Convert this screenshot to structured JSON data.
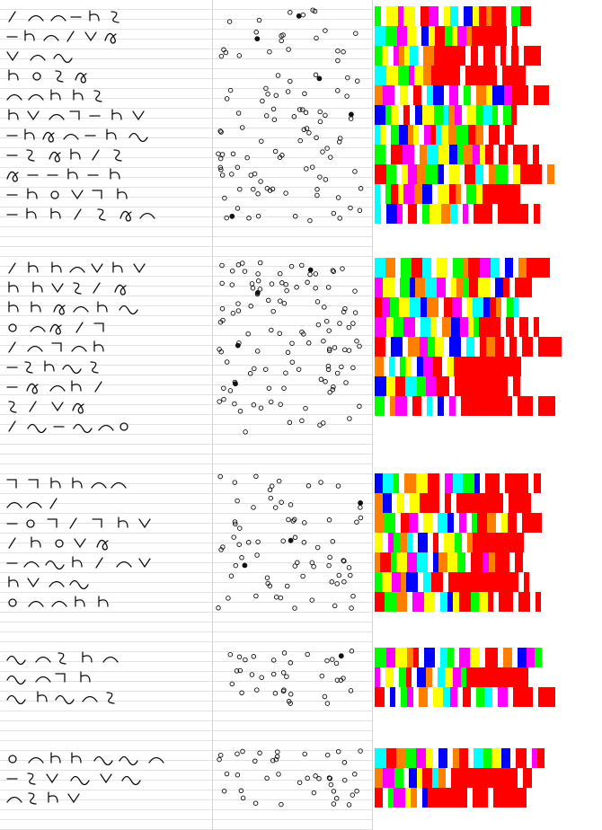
{
  "title": "",
  "colors": {
    "background": "#ffffff",
    "ruling": "#e3e3e3",
    "divider": "#d4d4d4",
    "ink": "#111111"
  },
  "palette": [
    "#ff0000",
    "#ff8000",
    "#ffff00",
    "#00ff00",
    "#00ffff",
    "#0000ff",
    "#ff00ff",
    "#ffffff"
  ],
  "glyph_shapes": [
    "arc",
    "loop",
    "hook",
    "tick",
    "dash",
    "vee",
    "circle",
    "wave",
    "step",
    "curl"
  ],
  "sections": [
    {
      "rows": [
        {
          "glyphs": [
            "tick",
            "arc",
            "arc",
            "dash",
            "hook",
            "curl"
          ],
          "dots": 6,
          "filled": 1,
          "colors": [
            3,
            2,
            6,
            2,
            0,
            6,
            2,
            4,
            5,
            2,
            0,
            1,
            0,
            0,
            3,
            0
          ]
        },
        {
          "glyphs": [
            "dash",
            "hook",
            "arc",
            "tick",
            "vee",
            "loop"
          ],
          "dots": 7,
          "filled": 1,
          "colors": [
            4,
            3,
            6,
            2,
            5,
            2,
            0,
            3,
            2,
            6,
            1,
            0,
            0,
            0,
            0,
            0
          ]
        },
        {
          "glyphs": [
            "vee",
            "arc",
            "wave"
          ],
          "dots": 9,
          "filled": 0,
          "colors": [
            3,
            2,
            6,
            1,
            2,
            4,
            1,
            0,
            0,
            0,
            0,
            0,
            0,
            0,
            0,
            0
          ]
        },
        {
          "glyphs": [
            "hook",
            "circle",
            "curl",
            "loop"
          ],
          "dots": 5,
          "filled": 1,
          "colors": [
            4,
            2,
            3,
            6,
            2,
            1,
            0,
            0,
            0,
            0,
            0,
            0,
            0,
            0,
            0,
            0
          ]
        },
        {
          "glyphs": [
            "arc",
            "arc",
            "hook",
            "hook",
            "curl"
          ],
          "dots": 10,
          "filled": 0,
          "colors": [
            1,
            6,
            2,
            0,
            4,
            5,
            6,
            3,
            1,
            2,
            5,
            6,
            0,
            0,
            0,
            0
          ]
        },
        {
          "glyphs": [
            "hook",
            "vee",
            "arc",
            "step",
            "dash",
            "hook",
            "vee"
          ],
          "dots": 12,
          "filled": 1,
          "colors": [
            5,
            3,
            2,
            0,
            5,
            2,
            3,
            4,
            1,
            6,
            2,
            3,
            4,
            3,
            3,
            0
          ]
        },
        {
          "glyphs": [
            "dash",
            "hook",
            "loop",
            "arc",
            "dash",
            "hook",
            "wave"
          ],
          "dots": 11,
          "filled": 0,
          "colors": [
            4,
            2,
            3,
            5,
            1,
            2,
            6,
            0,
            4,
            2,
            1,
            3,
            0,
            1,
            0,
            0
          ]
        },
        {
          "glyphs": [
            "dash",
            "curl",
            "loop",
            "hook",
            "tick",
            "curl"
          ],
          "dots": 11,
          "filled": 0,
          "colors": [
            3,
            0,
            6,
            1,
            4,
            2,
            5,
            3,
            1,
            6,
            2,
            0,
            0,
            0,
            0,
            0
          ]
        },
        {
          "glyphs": [
            "loop",
            "dash",
            "dash",
            "hook",
            "dash",
            "hook"
          ],
          "dots": 13,
          "filled": 0,
          "colors": [
            0,
            3,
            2,
            6,
            1,
            3,
            5,
            2,
            0,
            4,
            1,
            3,
            2,
            0,
            0,
            1
          ]
        },
        {
          "glyphs": [
            "dash",
            "hook",
            "circle",
            "vee",
            "step",
            "hook"
          ],
          "dots": 12,
          "filled": 0,
          "colors": [
            4,
            3,
            0,
            2,
            6,
            1,
            5,
            2,
            0,
            1,
            3,
            2,
            0,
            0,
            0,
            0
          ]
        },
        {
          "glyphs": [
            "dash",
            "hook",
            "hook",
            "tick",
            "curl",
            "loop",
            "arc"
          ],
          "dots": 10,
          "filled": 1,
          "colors": [
            4,
            5,
            6,
            0,
            3,
            2,
            1,
            4,
            6,
            0,
            0,
            0,
            0,
            0,
            0,
            0
          ]
        }
      ]
    },
    {
      "rows": [
        {
          "glyphs": [
            "tick",
            "hook",
            "hook",
            "arc",
            "vee",
            "hook",
            "vee"
          ],
          "dots": 15,
          "filled": 1,
          "colors": [
            4,
            1,
            3,
            0,
            4,
            2,
            3,
            1,
            0,
            6,
            4,
            5,
            1,
            0,
            0,
            0
          ]
        },
        {
          "glyphs": [
            "hook",
            "hook",
            "vee",
            "curl",
            "tick",
            "loop"
          ],
          "dots": 16,
          "filled": 1,
          "colors": [
            6,
            2,
            3,
            5,
            1,
            4,
            6,
            2,
            1,
            3,
            0,
            2,
            5,
            0,
            0,
            0
          ]
        },
        {
          "glyphs": [
            "hook",
            "hook",
            "loop",
            "arc",
            "hook",
            "wave"
          ],
          "dots": 14,
          "filled": 0,
          "colors": [
            0,
            6,
            3,
            2,
            4,
            5,
            1,
            0,
            6,
            2,
            4,
            5,
            0,
            1,
            3,
            4
          ]
        },
        {
          "glyphs": [
            "circle",
            "arc",
            "loop",
            "tick",
            "step"
          ],
          "dots": 13,
          "filled": 0,
          "colors": [
            6,
            2,
            3,
            6,
            4,
            2,
            1,
            5,
            6,
            2,
            3,
            0,
            0,
            0,
            0,
            0
          ]
        },
        {
          "glyphs": [
            "tick",
            "arc",
            "step",
            "arc",
            "hook"
          ],
          "dots": 15,
          "filled": 1,
          "colors": [
            0,
            5,
            1,
            6,
            3,
            2,
            5,
            4,
            0,
            1,
            0,
            0,
            0,
            0,
            0,
            0
          ]
        },
        {
          "glyphs": [
            "dash",
            "curl",
            "hook",
            "wave",
            "curl"
          ],
          "dots": 12,
          "filled": 0,
          "colors": [
            1,
            4,
            3,
            2,
            5,
            6,
            0,
            2,
            0,
            0,
            0,
            0,
            0,
            0,
            0,
            0
          ]
        },
        {
          "glyphs": [
            "dash",
            "loop",
            "arc",
            "hook",
            "tick"
          ],
          "dots": 11,
          "filled": 1,
          "colors": [
            5,
            2,
            0,
            4,
            3,
            6,
            0,
            0,
            0,
            0,
            0,
            0,
            0,
            0,
            0,
            0
          ]
        },
        {
          "glyphs": [
            "curl",
            "tick",
            "vee",
            "loop"
          ],
          "dots": 10,
          "filled": 0,
          "colors": [
            3,
            1,
            6,
            0,
            4,
            5,
            6,
            0,
            0,
            0,
            0,
            0,
            0,
            0,
            0,
            0
          ]
        },
        {
          "glyphs": [
            "tick",
            "wave",
            "dash",
            "wave",
            "arc",
            "circle"
          ],
          "dots": 6,
          "filled": 0,
          "colors": []
        }
      ]
    },
    {
      "rows": [
        {
          "glyphs": [
            "step",
            "step",
            "hook",
            "hook",
            "arc",
            "arc"
          ],
          "dots": 9,
          "filled": 0,
          "colors": [
            5,
            4,
            3,
            1,
            2,
            0,
            6,
            4,
            3,
            5,
            0,
            0,
            0,
            0,
            0,
            0
          ]
        },
        {
          "glyphs": [
            "arc",
            "arc",
            "tick"
          ],
          "dots": 7,
          "filled": 1,
          "colors": [
            1,
            5,
            2,
            2,
            0,
            0,
            0,
            0,
            0,
            0,
            0,
            0,
            0,
            0,
            0,
            0
          ]
        },
        {
          "glyphs": [
            "dash",
            "circle",
            "step",
            "tick",
            "step",
            "hook",
            "vee"
          ],
          "dots": 10,
          "filled": 0,
          "colors": [
            1,
            3,
            0,
            6,
            2,
            4,
            5,
            6,
            3,
            0,
            1,
            2,
            0,
            0,
            0,
            0
          ]
        },
        {
          "glyphs": [
            "tick",
            "hook",
            "circle",
            "vee",
            "loop"
          ],
          "dots": 11,
          "filled": 1,
          "colors": [
            2,
            6,
            3,
            1,
            4,
            5,
            0,
            2,
            3,
            1,
            0,
            0,
            0,
            0,
            0,
            0
          ]
        },
        {
          "glyphs": [
            "dash",
            "arc",
            "wave",
            "hook",
            "tick",
            "arc",
            "vee"
          ],
          "dots": 12,
          "filled": 1,
          "colors": [
            1,
            0,
            3,
            2,
            6,
            4,
            5,
            1,
            2,
            3,
            0,
            6,
            1,
            0,
            0,
            0
          ]
        },
        {
          "glyphs": [
            "hook",
            "vee",
            "arc",
            "wave"
          ],
          "dots": 11,
          "filled": 0,
          "colors": [
            3,
            2,
            6,
            1,
            5,
            4,
            0,
            0,
            0,
            0,
            0,
            0,
            0,
            0,
            0,
            0
          ]
        },
        {
          "glyphs": [
            "circle",
            "arc",
            "arc",
            "hook",
            "hook"
          ],
          "dots": 10,
          "filled": 0,
          "colors": [
            0,
            3,
            1,
            6,
            2,
            4,
            5,
            2,
            0,
            3,
            2,
            0,
            0,
            0,
            0,
            0
          ]
        }
      ]
    },
    {
      "rows": [
        {
          "glyphs": [
            "wave",
            "arc",
            "curl",
            "hook",
            "arc"
          ],
          "dots": 12,
          "filled": 1,
          "colors": [
            3,
            6,
            2,
            1,
            0,
            5,
            4,
            3,
            6,
            2,
            0,
            0,
            1,
            5,
            6,
            3
          ]
        },
        {
          "glyphs": [
            "wave",
            "arc",
            "step",
            "hook"
          ],
          "dots": 12,
          "filled": 0,
          "colors": [
            6,
            2,
            3,
            0,
            5,
            1,
            4,
            2,
            6,
            3,
            0,
            0,
            0,
            0,
            0,
            0
          ]
        },
        {
          "glyphs": [
            "wave",
            "hook",
            "wave",
            "arc",
            "curl"
          ],
          "dots": 11,
          "filled": 0,
          "colors": [
            0,
            5,
            3,
            6,
            1,
            2,
            4,
            6,
            0,
            3,
            4,
            6,
            0,
            0,
            0,
            0
          ]
        }
      ]
    },
    {
      "rows": [
        {
          "glyphs": [
            "circle",
            "arc",
            "hook",
            "hook",
            "wave",
            "wave",
            "arc"
          ],
          "dots": 15,
          "filled": 0,
          "colors": [
            4,
            0,
            1,
            3,
            6,
            2,
            5,
            1,
            0,
            4,
            3,
            2,
            5,
            0,
            6,
            0
          ]
        },
        {
          "glyphs": [
            "dash",
            "curl",
            "vee",
            "wave",
            "vee",
            "wave"
          ],
          "dots": 14,
          "filled": 0,
          "colors": [
            1,
            6,
            3,
            5,
            2,
            0,
            4,
            1,
            0,
            0,
            0,
            0,
            0,
            0,
            0,
            0
          ]
        },
        {
          "glyphs": [
            "arc",
            "curl",
            "hook",
            "vee"
          ],
          "dots": 12,
          "filled": 0,
          "colors": [
            0,
            3,
            6,
            2,
            1,
            5,
            0,
            0,
            0,
            0,
            0,
            0,
            0,
            0,
            0,
            0
          ]
        }
      ]
    }
  ]
}
